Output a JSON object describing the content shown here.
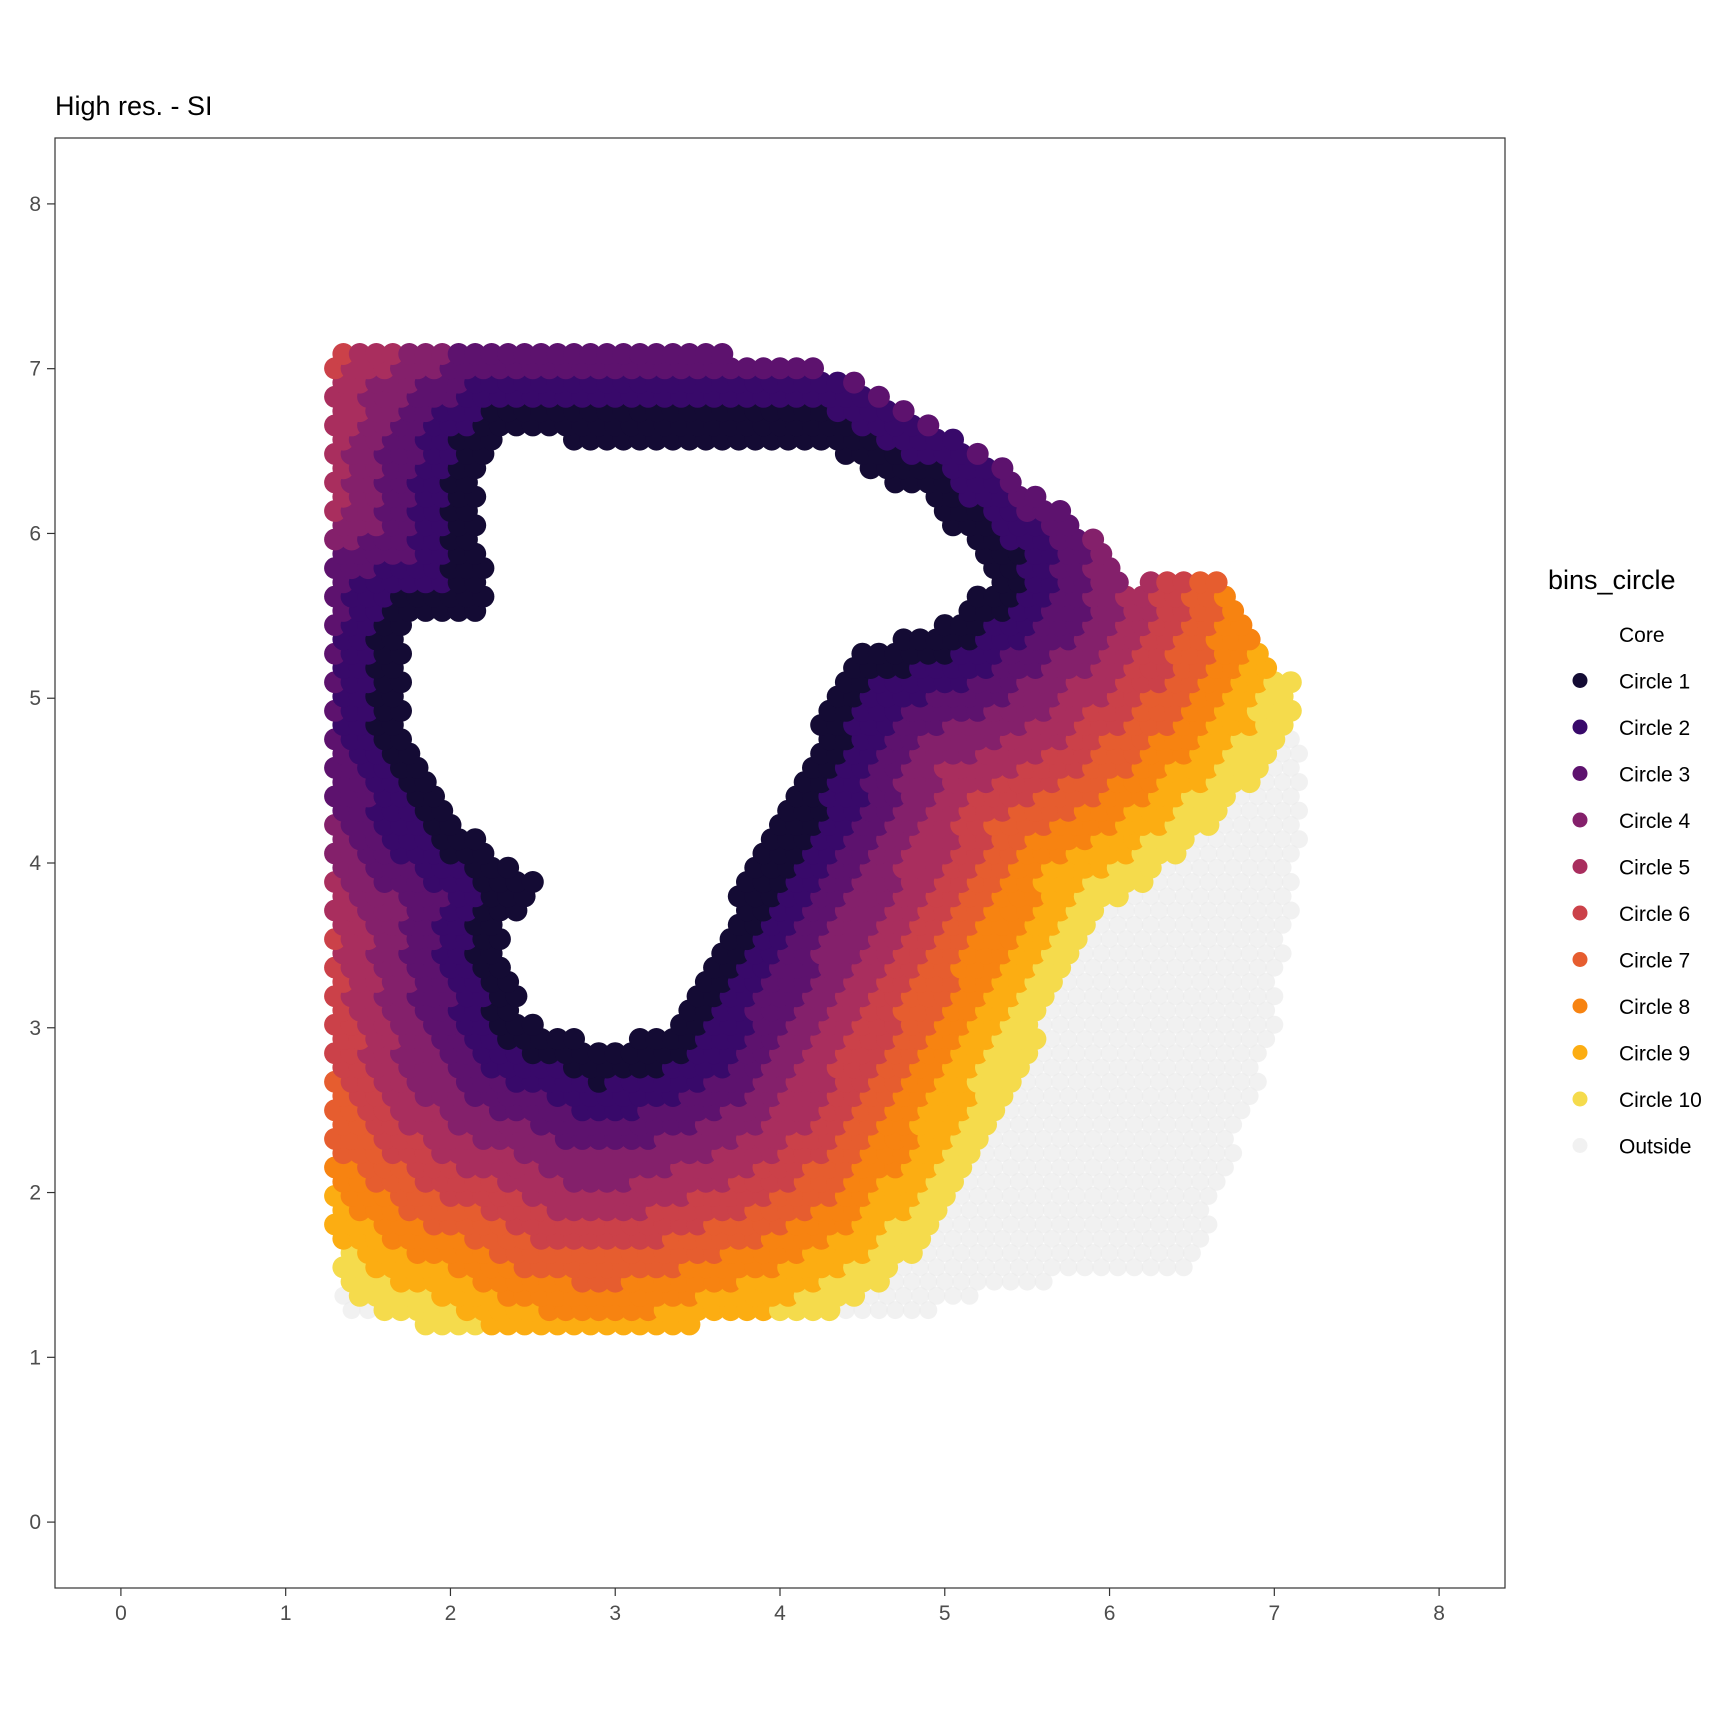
{
  "chart_data": {
    "type": "scatter",
    "title": "High res. - SI",
    "xlabel": "",
    "ylabel": "",
    "xlim": [
      -0.4,
      8.4
    ],
    "ylim": [
      -0.4,
      8.4
    ],
    "x_ticks": [
      "0",
      "1",
      "2",
      "3",
      "4",
      "5",
      "6",
      "7",
      "8"
    ],
    "y_ticks": [
      "0",
      "1",
      "2",
      "3",
      "4",
      "5",
      "6",
      "7",
      "8"
    ],
    "grid": false,
    "legend": {
      "title": "bins_circle",
      "position": "right",
      "entries": [
        {
          "label": "Core",
          "color": "#ffffff"
        },
        {
          "label": "Circle 1",
          "color": "#140b34"
        },
        {
          "label": "Circle 2",
          "color": "#38096a"
        },
        {
          "label": "Circle 3",
          "color": "#5d126e"
        },
        {
          "label": "Circle 4",
          "color": "#84206b"
        },
        {
          "label": "Circle 5",
          "color": "#a92e5e"
        },
        {
          "label": "Circle 6",
          "color": "#cb4149"
        },
        {
          "label": "Circle 7",
          "color": "#e65d2f"
        },
        {
          "label": "Circle 8",
          "color": "#f78311"
        },
        {
          "label": "Circle 9",
          "color": "#fcad12"
        },
        {
          "label": "Circle 10",
          "color": "#f5db4c"
        },
        {
          "label": "Outside",
          "color": "#ebebeb"
        }
      ]
    },
    "spot_spacing": 0.1,
    "core_outline": [
      [
        2.35,
        6.6
      ],
      [
        3.0,
        6.55
      ],
      [
        4.2,
        6.55
      ],
      [
        4.9,
        6.2
      ],
      [
        5.3,
        5.75
      ],
      [
        5.0,
        5.45
      ],
      [
        4.45,
        5.3
      ],
      [
        4.25,
        4.9
      ],
      [
        4.1,
        4.45
      ],
      [
        3.85,
        4.0
      ],
      [
        3.6,
        3.5
      ],
      [
        3.35,
        3.0
      ],
      [
        2.9,
        2.85
      ],
      [
        2.45,
        3.1
      ],
      [
        2.3,
        3.6
      ],
      [
        2.55,
        3.85
      ],
      [
        2.35,
        4.0
      ],
      [
        2.0,
        4.3
      ],
      [
        1.7,
        4.9
      ],
      [
        1.75,
        5.45
      ],
      [
        2.25,
        5.5
      ],
      [
        2.15,
        6.1
      ],
      [
        2.2,
        6.45
      ]
    ],
    "tissue_outline": [
      [
        1.3,
        7.1
      ],
      [
        3.6,
        7.1
      ],
      [
        4.3,
        7.0
      ],
      [
        5.1,
        6.6
      ],
      [
        5.9,
        6.0
      ],
      [
        6.15,
        5.7
      ],
      [
        6.65,
        5.75
      ],
      [
        7.1,
        5.1
      ],
      [
        7.2,
        4.4
      ],
      [
        7.0,
        3.0
      ],
      [
        6.7,
        2.0
      ],
      [
        6.45,
        1.5
      ],
      [
        5.4,
        1.45
      ],
      [
        4.8,
        1.25
      ],
      [
        2.2,
        1.15
      ],
      [
        1.35,
        1.25
      ],
      [
        1.25,
        2.3
      ],
      [
        1.3,
        4.0
      ],
      [
        1.25,
        5.5
      ],
      [
        1.3,
        6.6
      ]
    ],
    "bins": {
      "Core": {
        "min_distance": 0.0,
        "max_distance": 0.0
      },
      "Circle 1": {
        "min_distance": 0.0,
        "max_distance": 0.2
      },
      "Circle 2": {
        "min_distance": 0.2,
        "max_distance": 0.4
      },
      "Circle 3": {
        "min_distance": 0.4,
        "max_distance": 0.6
      },
      "Circle 4": {
        "min_distance": 0.6,
        "max_distance": 0.8
      },
      "Circle 5": {
        "min_distance": 0.8,
        "max_distance": 1.0
      },
      "Circle 6": {
        "min_distance": 1.0,
        "max_distance": 1.2
      },
      "Circle 7": {
        "min_distance": 1.2,
        "max_distance": 1.4
      },
      "Circle 8": {
        "min_distance": 1.4,
        "max_distance": 1.6
      },
      "Circle 9": {
        "min_distance": 1.6,
        "max_distance": 1.8
      },
      "Circle 10": {
        "min_distance": 1.8,
        "max_distance": 2.0
      },
      "Outside": {
        "min_distance": 2.0,
        "max_distance": 99
      }
    }
  }
}
